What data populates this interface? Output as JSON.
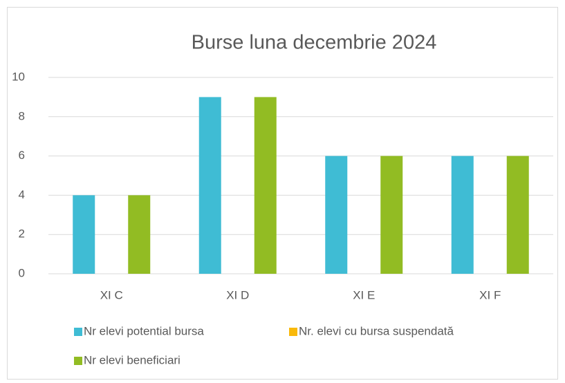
{
  "chart_data": {
    "type": "bar",
    "title": "Burse luna decembrie 2024",
    "categories": [
      "XI C",
      "XI D",
      "XI E",
      "XI F"
    ],
    "series": [
      {
        "name": "Nr elevi potential bursa",
        "color": "#3fbcd4",
        "values": [
          4,
          9,
          6,
          6
        ]
      },
      {
        "name": "Nr. elevi cu bursa suspendată",
        "color": "#f9b90b",
        "values": [
          0,
          0,
          0,
          0
        ]
      },
      {
        "name": "Nr elevi beneficiari",
        "color": "#92bc23",
        "values": [
          4,
          9,
          6,
          6
        ]
      }
    ],
    "ylim": [
      0,
      10
    ],
    "yticks": [
      0,
      2,
      4,
      6,
      8,
      10
    ],
    "grid": true
  }
}
